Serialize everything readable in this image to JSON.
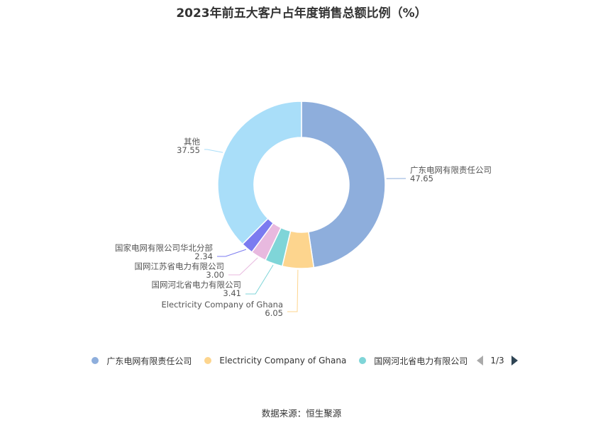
{
  "chart_data": {
    "type": "pie",
    "title": "2023年前五大客户占年度销售总额比例（%）",
    "categories": [
      "广东电网有限责任公司",
      "Electricity Company of Ghana",
      "国网河北省电力有限公司",
      "国网江苏省电力有限公司",
      "国家电网有限公司华北分部",
      "其他"
    ],
    "values": [
      47.65,
      6.05,
      3.41,
      3.0,
      2.34,
      37.55
    ],
    "value_labels": [
      "47.65",
      "6.05",
      "3.41",
      "3.00",
      "2.34",
      "37.55"
    ],
    "colors": [
      "#8eaedc",
      "#fdd58e",
      "#7fd5d8",
      "#e8b9df",
      "#7b7bf0",
      "#a9def9"
    ],
    "donut": true
  },
  "legend": {
    "items": [
      {
        "label": "广东电网有限责任公司",
        "color": "#8eaedc"
      },
      {
        "label": "Electricity Company of Ghana",
        "color": "#fdd58e"
      },
      {
        "label": "国网河北省电力有限公司",
        "color": "#7fd5d8"
      }
    ],
    "page": "1/3"
  },
  "source": "数据来源：恒生聚源"
}
